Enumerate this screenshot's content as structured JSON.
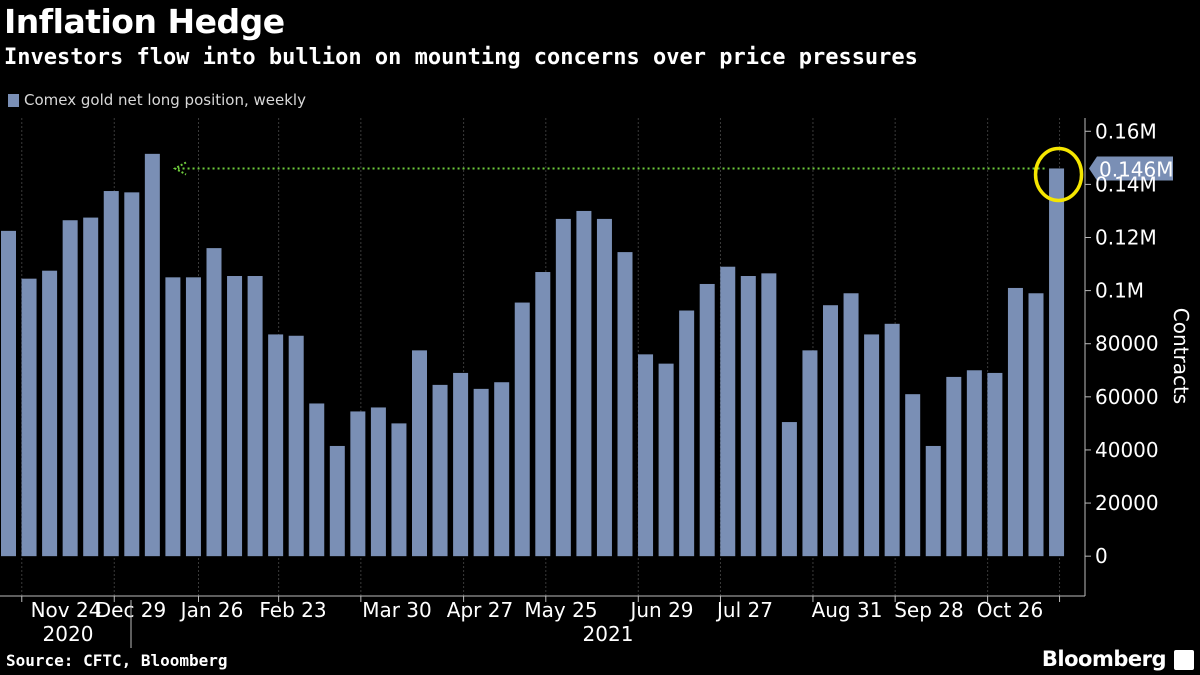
{
  "header": {
    "title": "Inflation Hedge",
    "subtitle": "Investors flow into bullion on mounting concerns over price pressures"
  },
  "footer": {
    "source": "Source: CFTC, Bloomberg",
    "brand": "Bloomberg"
  },
  "colors": {
    "background": "#000000",
    "bar": "#7a8fb5",
    "grid": "#3a3a3a",
    "arrow": "#6ecb3c",
    "highlight_circle": "#f5e600",
    "last_value_badge": "#7a8fb5"
  },
  "chart_data": {
    "type": "bar",
    "legend": [
      "Comex gold net long position, weekly"
    ],
    "legend_position": "top-left",
    "ylabel": "Contracts",
    "ylim": [
      -15000,
      165000
    ],
    "yticks": [
      {
        "value": 0,
        "label": "0"
      },
      {
        "value": 20000,
        "label": "20000"
      },
      {
        "value": 40000,
        "label": "40000"
      },
      {
        "value": 60000,
        "label": "60000"
      },
      {
        "value": 80000,
        "label": "80000"
      },
      {
        "value": 100000,
        "label": "0.1M"
      },
      {
        "value": 120000,
        "label": "0.12M"
      },
      {
        "value": 140000,
        "label": "0.14M"
      },
      {
        "value": 160000,
        "label": "0.16M"
      }
    ],
    "y_axis_side": "right",
    "grid": true,
    "last_value_label": "0.146M",
    "annotation": "dotted arrow from latest value back to December 2020 peak; latest bar circled",
    "series": [
      {
        "name": "Comex gold net long position, weekly",
        "values": [
          122500,
          104500,
          107500,
          126500,
          127500,
          137500,
          137000,
          151500,
          105000,
          105000,
          116000,
          105500,
          105500,
          83500,
          83000,
          57500,
          41500,
          54500,
          56000,
          50000,
          77500,
          64500,
          69000,
          63000,
          65500,
          95500,
          107000,
          127000,
          130000,
          127000,
          114500,
          76000,
          72500,
          92500,
          102500,
          109000,
          105500,
          106500,
          50500,
          77500,
          94500,
          99000,
          83500,
          87500,
          61000,
          41500,
          67500,
          70000,
          69000,
          101000,
          99000,
          146000
        ]
      }
    ],
    "x_tick_labels": [
      "Nov 24",
      "Dec 29",
      "Jan 26",
      "Feb 23",
      "Mar 30",
      "Apr 27",
      "May 25",
      "Jun 29",
      "Jul 27",
      "Aug 31",
      "Sep 28",
      "Oct 26"
    ],
    "x_year_labels": [
      "2020",
      "2021"
    ]
  }
}
